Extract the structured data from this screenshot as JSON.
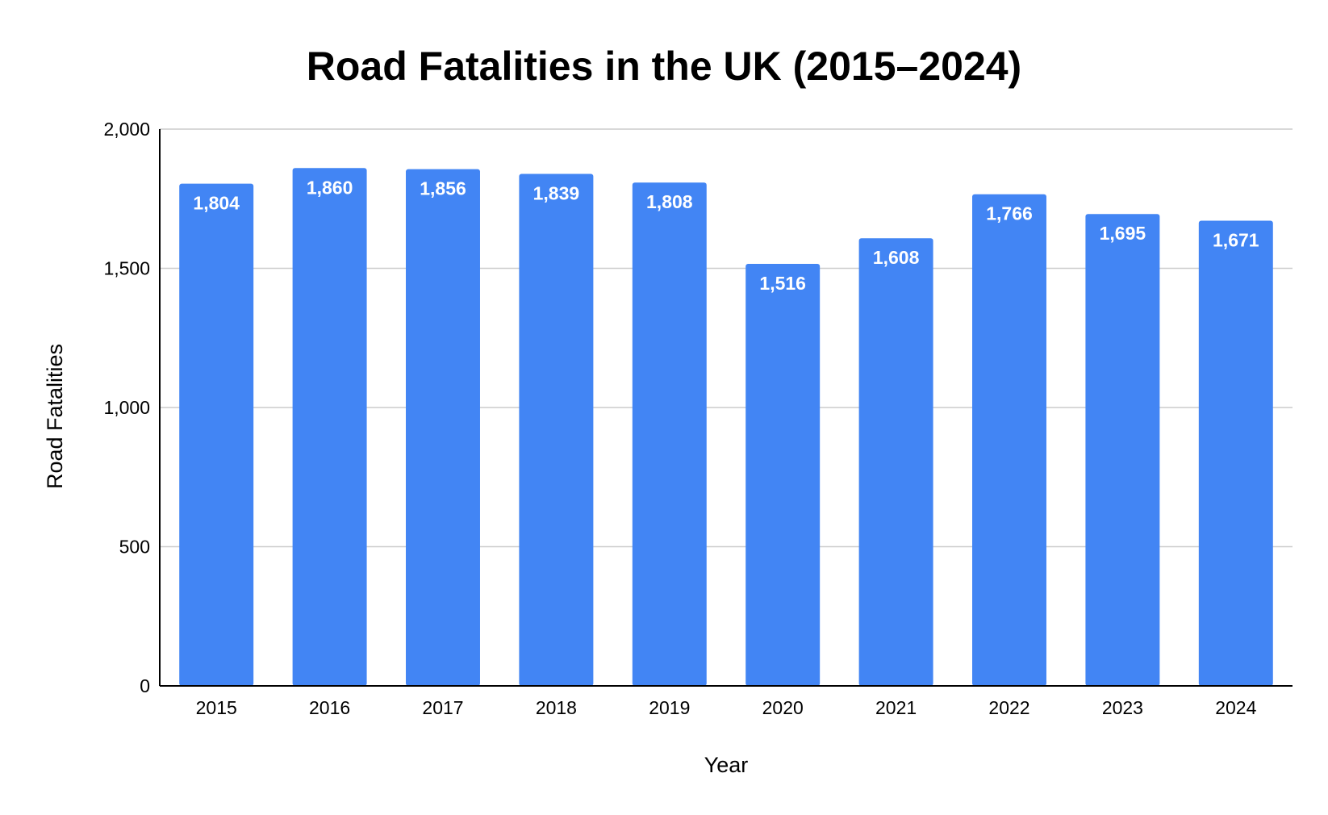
{
  "chart_data": {
    "type": "bar",
    "title": "Road Fatalities in the UK (2015–2024)",
    "xlabel": "Year",
    "ylabel": "Road Fatalities",
    "categories": [
      "2015",
      "2016",
      "2017",
      "2018",
      "2019",
      "2020",
      "2021",
      "2022",
      "2023",
      "2024"
    ],
    "values": [
      1804,
      1860,
      1856,
      1839,
      1808,
      1516,
      1608,
      1766,
      1695,
      1671
    ],
    "data_labels": [
      "1,804",
      "1,860",
      "1,856",
      "1,839",
      "1,808",
      "1,516",
      "1,608",
      "1,766",
      "1,695",
      "1,671"
    ],
    "ylim": [
      0,
      2000
    ],
    "yticks": [
      0,
      500,
      1000,
      1500,
      2000
    ],
    "ytick_labels": [
      "0",
      "500",
      "1,000",
      "1,500",
      "2,000"
    ],
    "grid": true,
    "legend": "none",
    "bar_color": "#4285f4",
    "label_color": "#ffffff",
    "grid_color": "#cccccc"
  }
}
